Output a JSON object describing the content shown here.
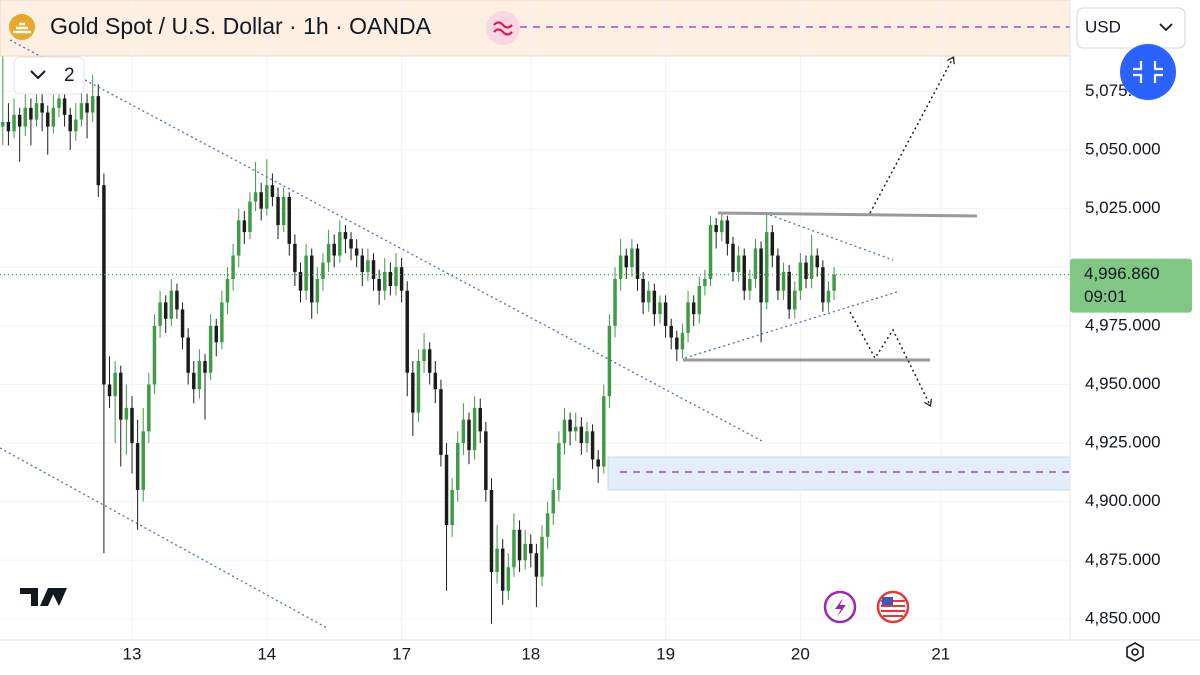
{
  "header": {
    "title": "Gold Spot / U.S. Dollar · 1h · OANDA",
    "indicator_count": "2",
    "currency": "USD"
  },
  "chart_data": {
    "type": "candlestick",
    "up_color": "#3f9b45",
    "down_color": "#1c1c1c",
    "grid": true,
    "xlim": [
      -0.5,
      190
    ],
    "ylim": [
      4841,
      5114
    ],
    "xticks": [
      {
        "value": 23,
        "label": "13"
      },
      {
        "value": 47,
        "label": "14"
      },
      {
        "value": 71,
        "label": "17"
      },
      {
        "value": 94,
        "label": "18"
      },
      {
        "value": 118,
        "label": "19"
      },
      {
        "value": 142,
        "label": "20"
      },
      {
        "value": 167,
        "label": "21"
      }
    ],
    "yticks": [
      {
        "value": 4850,
        "label": "4,850.000"
      },
      {
        "value": 4875,
        "label": "4,875.000"
      },
      {
        "value": 4900,
        "label": "4,900.000"
      },
      {
        "value": 4925,
        "label": "4,925.000"
      },
      {
        "value": 4950,
        "label": "4,950.000"
      },
      {
        "value": 4975,
        "label": "4,975.000"
      },
      {
        "value": 5000,
        "label": "5,000.000"
      },
      {
        "value": 5025,
        "label": "5,025.000"
      },
      {
        "value": 5050,
        "label": "5,050.000"
      },
      {
        "value": 5075,
        "label": "5,075.000"
      }
    ],
    "last_price": {
      "value": 4996.86,
      "label": "4,996.860"
    },
    "countdown": "09:01",
    "ohlc": [
      [
        5060,
        5090,
        5052,
        5062
      ],
      [
        5062,
        5070,
        5052,
        5058
      ],
      [
        5058,
        5072,
        5055,
        5065
      ],
      [
        5065,
        5068,
        5045,
        5060
      ],
      [
        5060,
        5074,
        5056,
        5068
      ],
      [
        5068,
        5072,
        5052,
        5063
      ],
      [
        5063,
        5078,
        5060,
        5070
      ],
      [
        5070,
        5074,
        5058,
        5066
      ],
      [
        5066,
        5069,
        5048,
        5060
      ],
      [
        5060,
        5075,
        5057,
        5068
      ],
      [
        5068,
        5080,
        5064,
        5072
      ],
      [
        5072,
        5076,
        5060,
        5065
      ],
      [
        5065,
        5068,
        5050,
        5058
      ],
      [
        5058,
        5070,
        5054,
        5063
      ],
      [
        5063,
        5076,
        5060,
        5070
      ],
      [
        5070,
        5074,
        5055,
        5066
      ],
      [
        5066,
        5082,
        5062,
        5073
      ],
      [
        5073,
        5078,
        5030,
        5035
      ],
      [
        5035,
        5040,
        4878,
        4950
      ],
      [
        4950,
        4962,
        4940,
        4945
      ],
      [
        4945,
        4960,
        4925,
        4955
      ],
      [
        4955,
        4958,
        4915,
        4935
      ],
      [
        4935,
        4950,
        4920,
        4940
      ],
      [
        4940,
        4945,
        4912,
        4925
      ],
      [
        4925,
        4935,
        4888,
        4905
      ],
      [
        4905,
        4940,
        4900,
        4930
      ],
      [
        4930,
        4955,
        4925,
        4950
      ],
      [
        4950,
        4980,
        4946,
        4975
      ],
      [
        4975,
        4990,
        4970,
        4985
      ],
      [
        4985,
        4988,
        4972,
        4978
      ],
      [
        4978,
        4995,
        4975,
        4990
      ],
      [
        4990,
        4993,
        4978,
        4982
      ],
      [
        4982,
        4985,
        4965,
        4970
      ],
      [
        4970,
        4974,
        4950,
        4955
      ],
      [
        4955,
        4960,
        4942,
        4948
      ],
      [
        4948,
        4965,
        4944,
        4960
      ],
      [
        4960,
        4963,
        4935,
        4955
      ],
      [
        4955,
        4980,
        4952,
        4975
      ],
      [
        4975,
        4978,
        4962,
        4968
      ],
      [
        4968,
        4990,
        4965,
        4985
      ],
      [
        4985,
        5000,
        4980,
        4995
      ],
      [
        4995,
        5010,
        4990,
        5005
      ],
      [
        5005,
        5025,
        5000,
        5020
      ],
      [
        5020,
        5024,
        5010,
        5015
      ],
      [
        5015,
        5032,
        5012,
        5028
      ],
      [
        5028,
        5045,
        5024,
        5032
      ],
      [
        5032,
        5036,
        5020,
        5025
      ],
      [
        5025,
        5046,
        5022,
        5035
      ],
      [
        5035,
        5040,
        5026,
        5030
      ],
      [
        5030,
        5034,
        5012,
        5018
      ],
      [
        5018,
        5034,
        5015,
        5030
      ],
      [
        5030,
        5032,
        5005,
        5010
      ],
      [
        5010,
        5014,
        4992,
        4998
      ],
      [
        4998,
        5002,
        4985,
        4990
      ],
      [
        4990,
        5010,
        4986,
        5005
      ],
      [
        5005,
        5008,
        4978,
        4985
      ],
      [
        4985,
        5000,
        4980,
        4995
      ],
      [
        4995,
        5006,
        4990,
        5002
      ],
      [
        5002,
        5016,
        4998,
        5010
      ],
      [
        5010,
        5014,
        5000,
        5005
      ],
      [
        5005,
        5020,
        5002,
        5015
      ],
      [
        5015,
        5018,
        5006,
        5012
      ],
      [
        5012,
        5015,
        5003,
        5008
      ],
      [
        5008,
        5012,
        5000,
        5005
      ],
      [
        5005,
        5008,
        4992,
        4998
      ],
      [
        4998,
        5008,
        4994,
        5003
      ],
      [
        5003,
        5006,
        4990,
        4995
      ],
      [
        4995,
        4999,
        4984,
        4990
      ],
      [
        4990,
        5004,
        4986,
        4998
      ],
      [
        4998,
        5002,
        4988,
        4992
      ],
      [
        4992,
        5006,
        4988,
        5000
      ],
      [
        5000,
        5004,
        4985,
        4990
      ],
      [
        4990,
        4994,
        4945,
        4955
      ],
      [
        4955,
        4960,
        4928,
        4938
      ],
      [
        4938,
        4965,
        4934,
        4960
      ],
      [
        4960,
        4972,
        4955,
        4965
      ],
      [
        4965,
        4968,
        4950,
        4955
      ],
      [
        4955,
        4960,
        4942,
        4948
      ],
      [
        4948,
        4952,
        4915,
        4920
      ],
      [
        4920,
        4925,
        4862,
        4890
      ],
      [
        4890,
        4910,
        4885,
        4905
      ],
      [
        4905,
        4930,
        4900,
        4925
      ],
      [
        4925,
        4942,
        4920,
        4935
      ],
      [
        4935,
        4938,
        4916,
        4922
      ],
      [
        4922,
        4945,
        4918,
        4940
      ],
      [
        4940,
        4944,
        4925,
        4930
      ],
      [
        4930,
        4934,
        4900,
        4905
      ],
      [
        4905,
        4910,
        4848,
        4870
      ],
      [
        4870,
        4890,
        4865,
        4880
      ],
      [
        4880,
        4884,
        4856,
        4862
      ],
      [
        4862,
        4878,
        4858,
        4872
      ],
      [
        4872,
        4895,
        4868,
        4888
      ],
      [
        4888,
        4892,
        4870,
        4875
      ],
      [
        4875,
        4888,
        4871,
        4882
      ],
      [
        4882,
        4886,
        4872,
        4878
      ],
      [
        4878,
        4882,
        4855,
        4868
      ],
      [
        4868,
        4890,
        4864,
        4885
      ],
      [
        4885,
        4900,
        4880,
        4895
      ],
      [
        4895,
        4910,
        4890,
        4905
      ],
      [
        4905,
        4930,
        4900,
        4925
      ],
      [
        4925,
        4940,
        4920,
        4935
      ],
      [
        4935,
        4938,
        4924,
        4930
      ],
      [
        4930,
        4938,
        4926,
        4932
      ],
      [
        4932,
        4936,
        4920,
        4925
      ],
      [
        4925,
        4934,
        4921,
        4930
      ],
      [
        4930,
        4933,
        4914,
        4918
      ],
      [
        4918,
        4922,
        4908,
        4915
      ],
      [
        4915,
        4950,
        4912,
        4945
      ],
      [
        4945,
        4980,
        4940,
        4975
      ],
      [
        4975,
        5000,
        4970,
        4995
      ],
      [
        4995,
        5012,
        4990,
        5005
      ],
      [
        5005,
        5008,
        4995,
        5000
      ],
      [
        5000,
        5012,
        4996,
        5008
      ],
      [
        5008,
        5010,
        4990,
        4995
      ],
      [
        4995,
        4998,
        4980,
        4985
      ],
      [
        4985,
        4994,
        4981,
        4990
      ],
      [
        4990,
        4993,
        4975,
        4980
      ],
      [
        4980,
        4988,
        4976,
        4985
      ],
      [
        4985,
        4988,
        4970,
        4975
      ],
      [
        4975,
        4978,
        4965,
        4970
      ],
      [
        4970,
        4973,
        4960,
        4965
      ],
      [
        4965,
        4976,
        4961,
        4972
      ],
      [
        4972,
        4990,
        4968,
        4985
      ],
      [
        4985,
        4988,
        4975,
        4980
      ],
      [
        4980,
        4996,
        4976,
        4992
      ],
      [
        4992,
        4999,
        4988,
        4995
      ],
      [
        4995,
        5022,
        4992,
        5018
      ],
      [
        5018,
        5021,
        5008,
        5015
      ],
      [
        5015,
        5023,
        5011,
        5020
      ],
      [
        5020,
        5022,
        5005,
        5010
      ],
      [
        5010,
        5013,
        4994,
        4998
      ],
      [
        4998,
        5009,
        4994,
        5005
      ],
      [
        5005,
        5008,
        4986,
        4990
      ],
      [
        4990,
        4999,
        4986,
        4995
      ],
      [
        4995,
        5012,
        4991,
        5008
      ],
      [
        5008,
        5011,
        4968,
        4985
      ],
      [
        4985,
        5023,
        4982,
        5015
      ],
      [
        5015,
        5018,
        5000,
        5005
      ],
      [
        5005,
        5008,
        4986,
        4990
      ],
      [
        4990,
        5002,
        4986,
        4998
      ],
      [
        4998,
        5001,
        4978,
        4982
      ],
      [
        4982,
        4994,
        4978,
        4990
      ],
      [
        4990,
        5006,
        4986,
        5002
      ],
      [
        5002,
        5005,
        4991,
        4995
      ],
      [
        4995,
        5014,
        4991,
        5005
      ],
      [
        5005,
        5008,
        4996,
        5000
      ],
      [
        5000,
        5003,
        4981,
        4985
      ],
      [
        4985,
        4994,
        4981,
        4990
      ],
      [
        4990,
        5000,
        4986,
        4996.86
      ]
    ]
  }
}
